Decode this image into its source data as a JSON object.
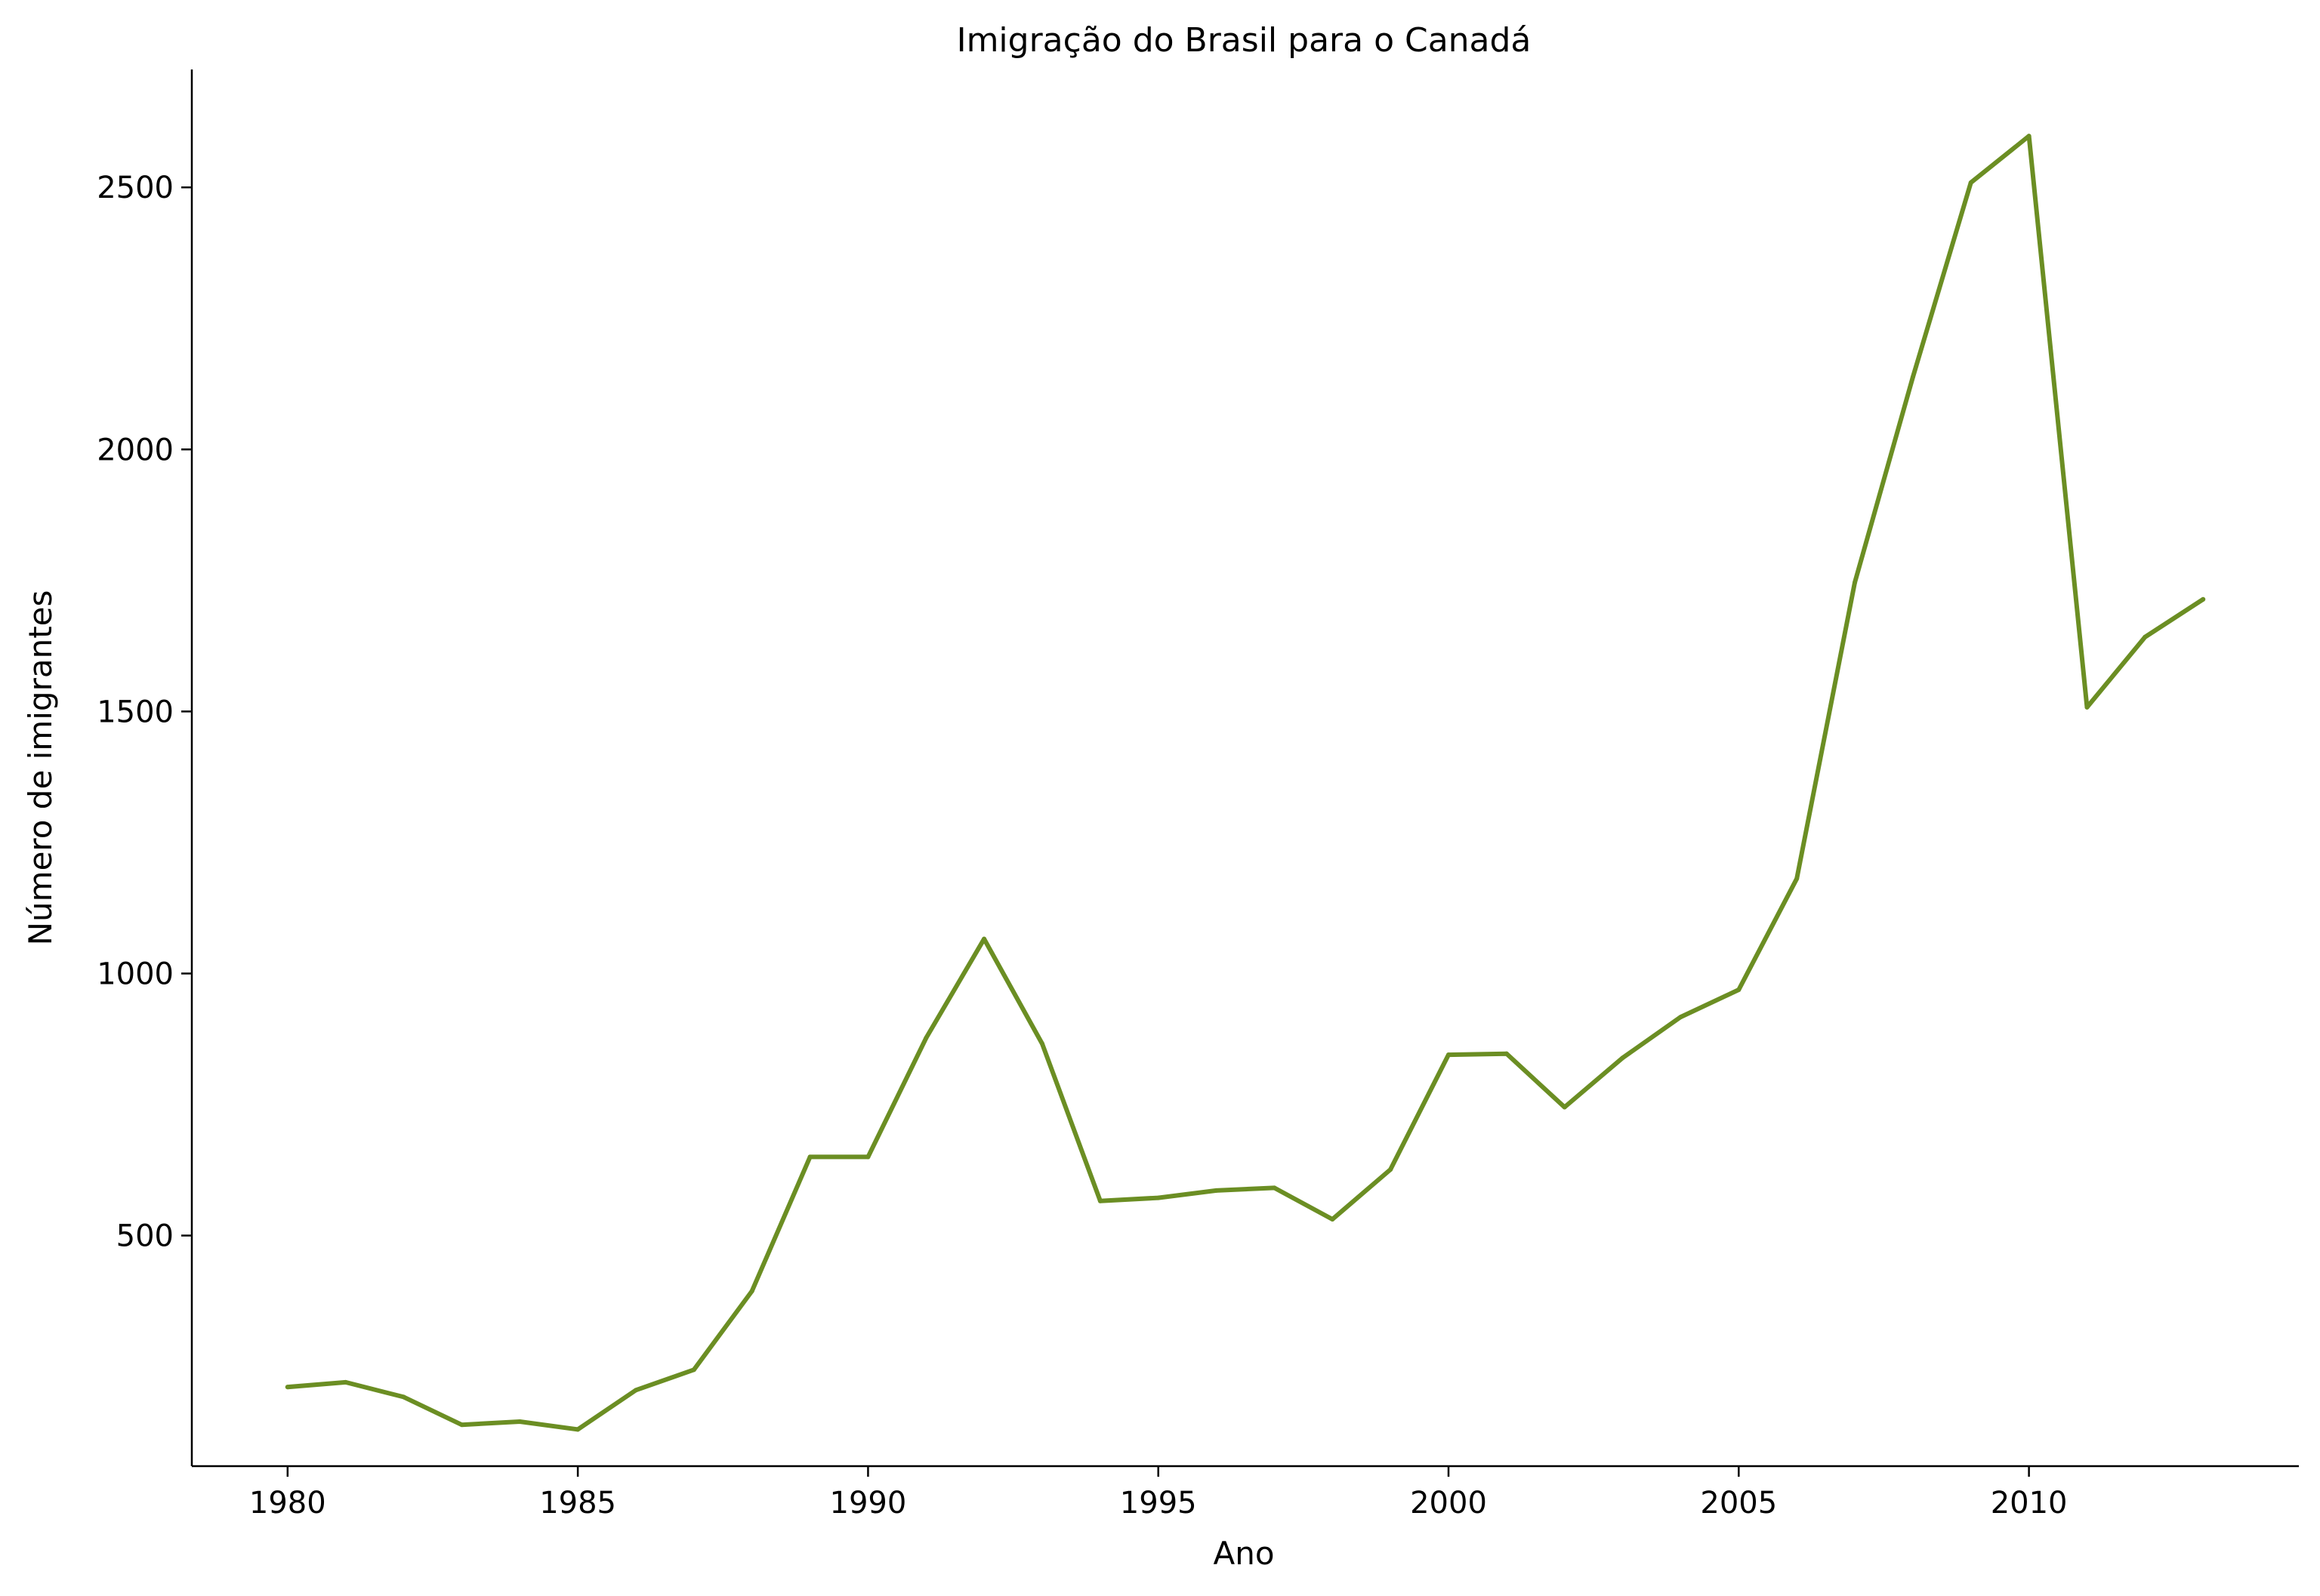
{
  "chart_data": {
    "type": "line",
    "title": "Imigração do Brasil para o Canadá",
    "xlabel": "Ano",
    "ylabel": "Número de imigrantes",
    "xlim": [
      1978.35,
      2014.65
    ],
    "ylim": [
      60,
      2725
    ],
    "xticks": [
      1980,
      1985,
      1990,
      1995,
      2000,
      2005,
      2010
    ],
    "yticks": [
      500,
      1000,
      1500,
      2000,
      2500
    ],
    "grid": false,
    "legend": "none",
    "line_color": "#6b8e23",
    "x": [
      1980,
      1981,
      1982,
      1983,
      1984,
      1985,
      1986,
      1987,
      1988,
      1989,
      1990,
      1991,
      1992,
      1993,
      1994,
      1995,
      1996,
      1997,
      1998,
      1999,
      2000,
      2001,
      2002,
      2003,
      2004,
      2005,
      2006,
      2007,
      2008,
      2009,
      2010,
      2011,
      2012,
      2013
    ],
    "series": [
      {
        "values": [
          211,
          220,
          192,
          139,
          145,
          130,
          205,
          244,
          394,
          650,
          650,
          877,
          1066,
          866,
          566,
          572,
          586,
          591,
          531,
          626,
          845,
          847,
          745,
          839,
          917,
          969,
          1181,
          1746,
          2138,
          2509,
          2598,
          1508,
          1642,
          1714
        ]
      }
    ]
  }
}
